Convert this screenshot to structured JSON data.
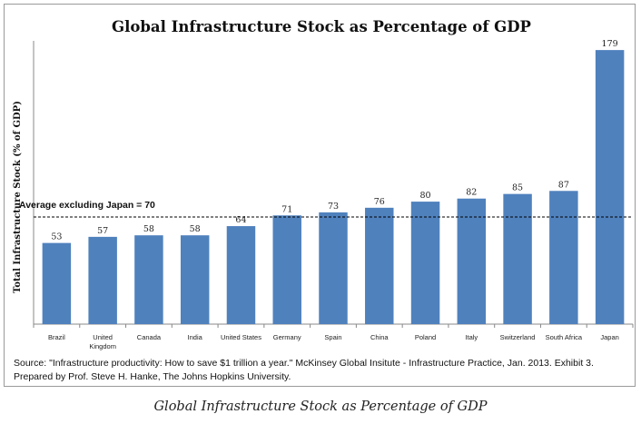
{
  "chart_data": {
    "type": "bar",
    "title": "Global Infrastructure Stock as Percentage of GDP",
    "ylabel": "Total Infrastructure Stock (% of GDP)",
    "xlabel": "",
    "categories": [
      "Brazil",
      "United Kingdom",
      "Canada",
      "India",
      "United States",
      "Germany",
      "Spain",
      "China",
      "Poland",
      "Italy",
      "Switzerland",
      "South Africa",
      "Japan"
    ],
    "values": [
      53,
      57,
      58,
      58,
      64,
      71,
      73,
      76,
      80,
      82,
      85,
      87,
      179
    ],
    "ylim": [
      0,
      185
    ],
    "grid": false,
    "reference_line": {
      "value": 70,
      "label": "Average excluding Japan = 70",
      "style": "dashed"
    },
    "bar_color": "#4f81bd"
  },
  "source": {
    "line1": "Source: \"Infrastructure productivity: How to save $1 trillion a year.\" McKinsey Global Insitute - Infrastructure Practice, Jan. 2013. Exhibit 3.",
    "line2": "Prepared by Prof. Steve H. Hanke, The Johns Hopkins University."
  },
  "caption": "Global Infrastructure Stock as Percentage of GDP"
}
